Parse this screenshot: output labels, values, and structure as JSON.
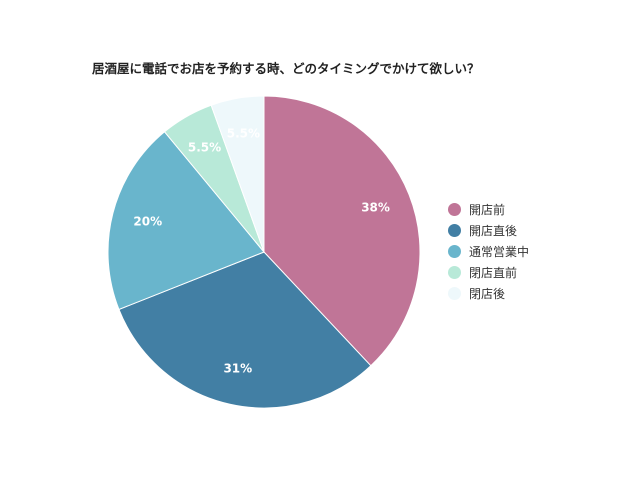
{
  "chart_data": {
    "type": "pie",
    "title": "居酒屋に電話でお店を予約する時、どのタイミングでかけて欲しい？",
    "legend_position": "right",
    "slices": [
      {
        "name": "開店前",
        "value": 38,
        "label": "38%",
        "color": "#c07597"
      },
      {
        "name": "開店直後",
        "value": 31,
        "label": "31%",
        "color": "#427fa4"
      },
      {
        "name": "通常営業中",
        "value": 20,
        "label": "20%",
        "color": "#69b5cc"
      },
      {
        "name": "閉店直前",
        "value": 5.5,
        "label": "5.5%",
        "color": "#b8e9d8"
      },
      {
        "name": "閉店後",
        "value": 5.5,
        "label": "5.5%",
        "color": "#eef8fb"
      }
    ]
  }
}
